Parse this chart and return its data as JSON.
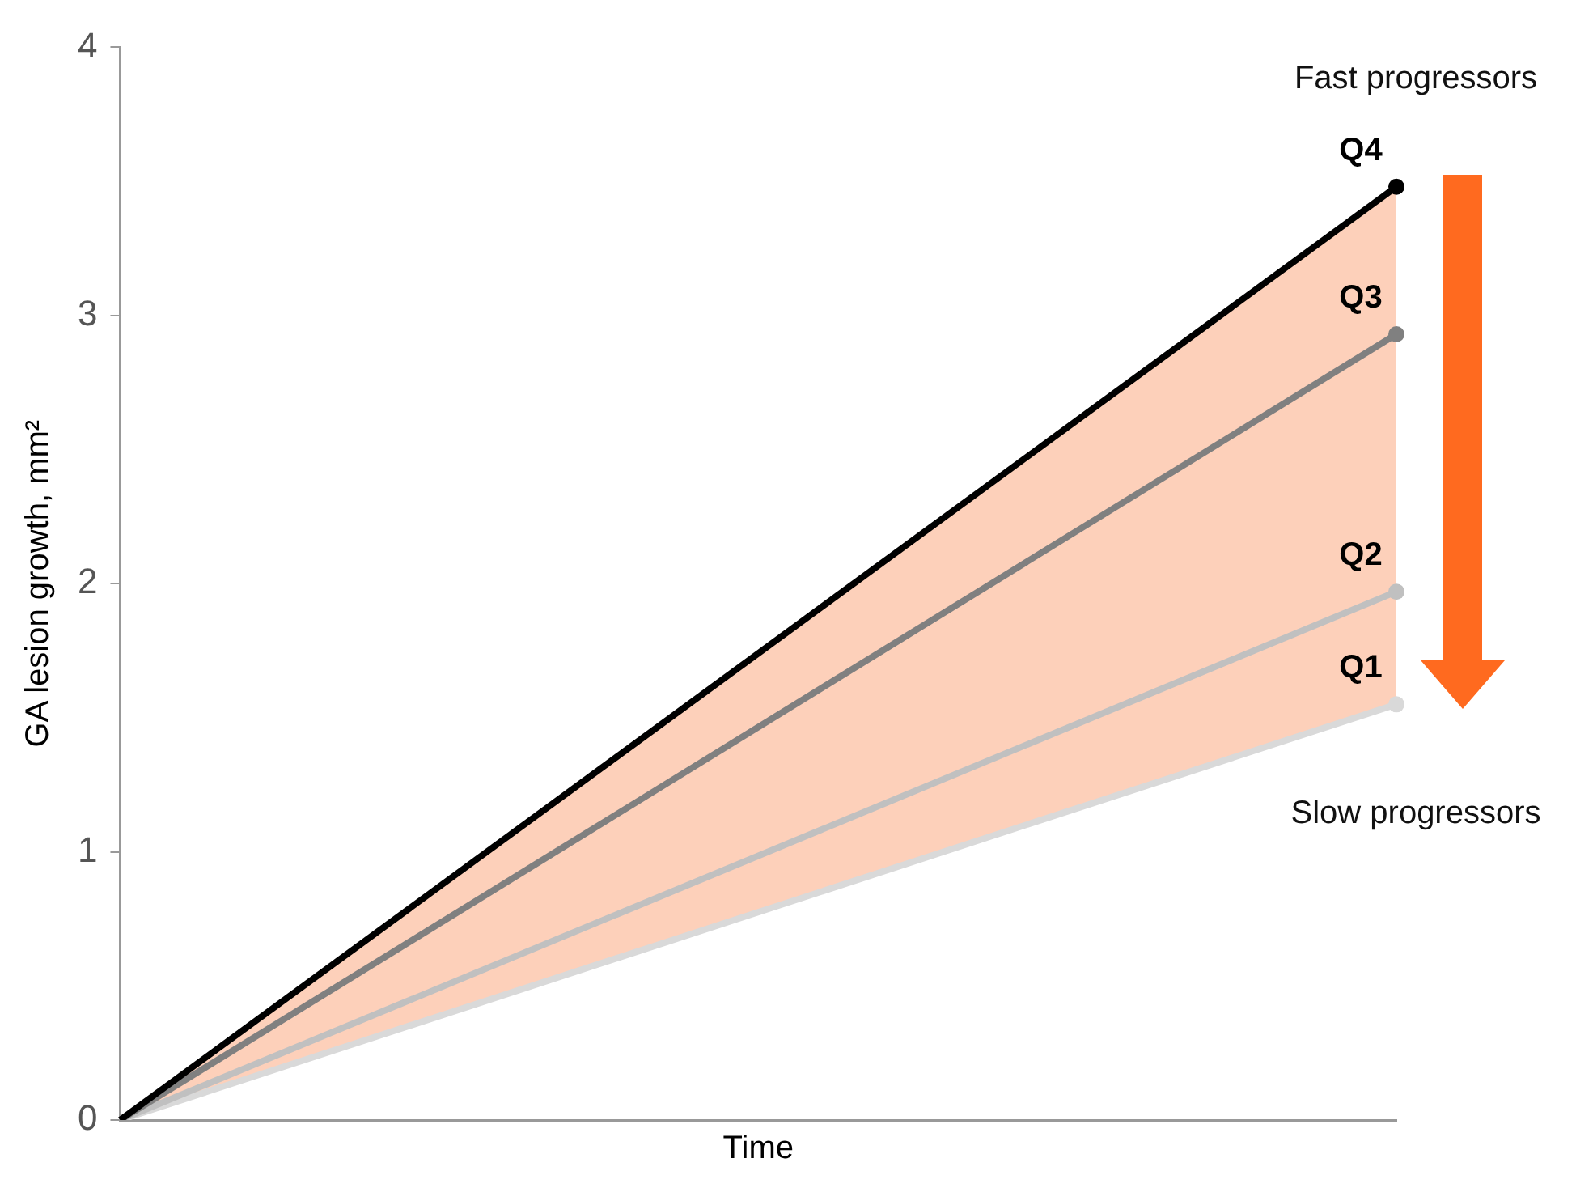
{
  "chart_data": {
    "type": "line",
    "xlabel": "Time",
    "ylabel": "GA lesion growth, mm²",
    "categories": [
      null,
      null
    ],
    "series": [
      {
        "name": "Q4",
        "color": "#000000",
        "values": [
          0,
          3.48
        ],
        "lower": [
          0,
          1.55
        ],
        "upper": [
          0,
          3.48
        ]
      },
      {
        "name": "Q3",
        "color": "#808080",
        "values": [
          0,
          2.93
        ]
      },
      {
        "name": "Q2",
        "color": "#c0c0c0",
        "values": [
          0,
          1.97
        ]
      },
      {
        "name": "Q1",
        "color": "#d9d9d9",
        "values": [
          0,
          1.55
        ]
      }
    ],
    "ylim": [
      0,
      4
    ],
    "yticks": [
      0,
      1,
      2,
      3,
      4
    ],
    "grid": false,
    "legend": false,
    "tick_labels": "y",
    "marker": "circle",
    "line_style": "solid",
    "annotations": [
      "Fast progressors",
      "Slow progressors"
    ]
  }
}
